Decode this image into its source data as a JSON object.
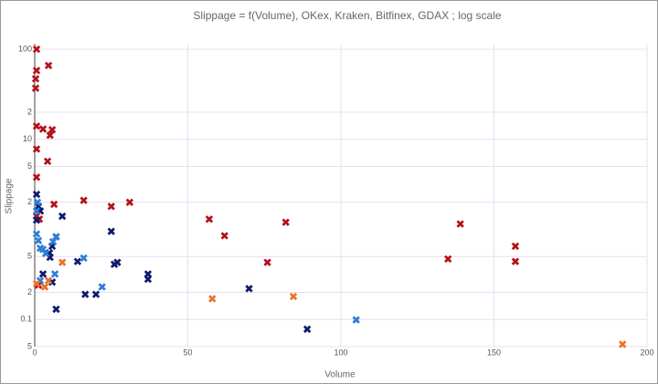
{
  "chart_data": {
    "type": "scatter",
    "title": "Slippage = f(Volume), OKex, Kraken, Bitfinex, GDAX ; log scale",
    "x_label": "Volume",
    "y_label": "Slippage",
    "log_y": true,
    "grid": true,
    "xlim": [
      0,
      200
    ],
    "xticks": [
      0,
      50,
      100,
      150,
      200
    ],
    "ylim": [
      0.05,
      115
    ],
    "yticks": [
      100,
      {
        "value": 20,
        "label": "2"
      },
      10,
      {
        "value": 5,
        "label": "5"
      },
      {
        "value": 2,
        "label": "2"
      },
      {
        "value": 0.5,
        "label": "5"
      },
      {
        "value": 0.2,
        "label": "2"
      },
      0.1,
      {
        "value": 0.05,
        "label": "5"
      }
    ],
    "series": [
      {
        "color": "#b5121b",
        "x": [
          0.6,
          0.6,
          0.3,
          0.3,
          4.5,
          0.6,
          2.7,
          5.7,
          5,
          0.6,
          4.2,
          0.6,
          6.3,
          16,
          25,
          31,
          1.5,
          0.6,
          57,
          62,
          82,
          76,
          139,
          135,
          157,
          157,
          1.2
        ],
        "values": [
          100,
          58,
          47,
          37,
          66,
          14,
          13,
          12.8,
          11.1,
          7.8,
          5.7,
          3.8,
          1.9,
          2.1,
          1.8,
          2,
          1.3,
          1.4,
          1.3,
          0.85,
          1.2,
          0.43,
          1.15,
          0.47,
          0.65,
          0.44,
          0.24
        ]
      },
      {
        "color": "#0d1a6e",
        "x": [
          0.6,
          1.2,
          1.8,
          9,
          0.6,
          25,
          7,
          5.7,
          4.8,
          14,
          27,
          26,
          37,
          37,
          7,
          16.5,
          20,
          70,
          89,
          5.7,
          2.7,
          5
        ],
        "values": [
          2.45,
          1.8,
          1.6,
          1.4,
          1.27,
          0.95,
          0.83,
          0.65,
          0.55,
          0.44,
          0.43,
          0.41,
          0.32,
          0.28,
          0.13,
          0.19,
          0.19,
          0.22,
          0.078,
          0.26,
          0.32,
          0.49
        ]
      },
      {
        "color": "#2f7ed8",
        "x": [
          0.6,
          1.2,
          1.8,
          2.7,
          3.6,
          0.6,
          0.9,
          6,
          7,
          16,
          22,
          105,
          1.8,
          6.6
        ],
        "values": [
          0.89,
          0.75,
          0.62,
          0.6,
          0.54,
          1.6,
          2,
          0.73,
          0.83,
          0.48,
          0.23,
          0.099,
          0.27,
          0.32
        ]
      },
      {
        "color": "#e8742a",
        "x": [
          0.6,
          3.3,
          4.5,
          9,
          58,
          84.5,
          192
        ],
        "values": [
          0.25,
          0.23,
          0.27,
          0.43,
          0.17,
          0.18,
          0.053
        ]
      }
    ]
  }
}
